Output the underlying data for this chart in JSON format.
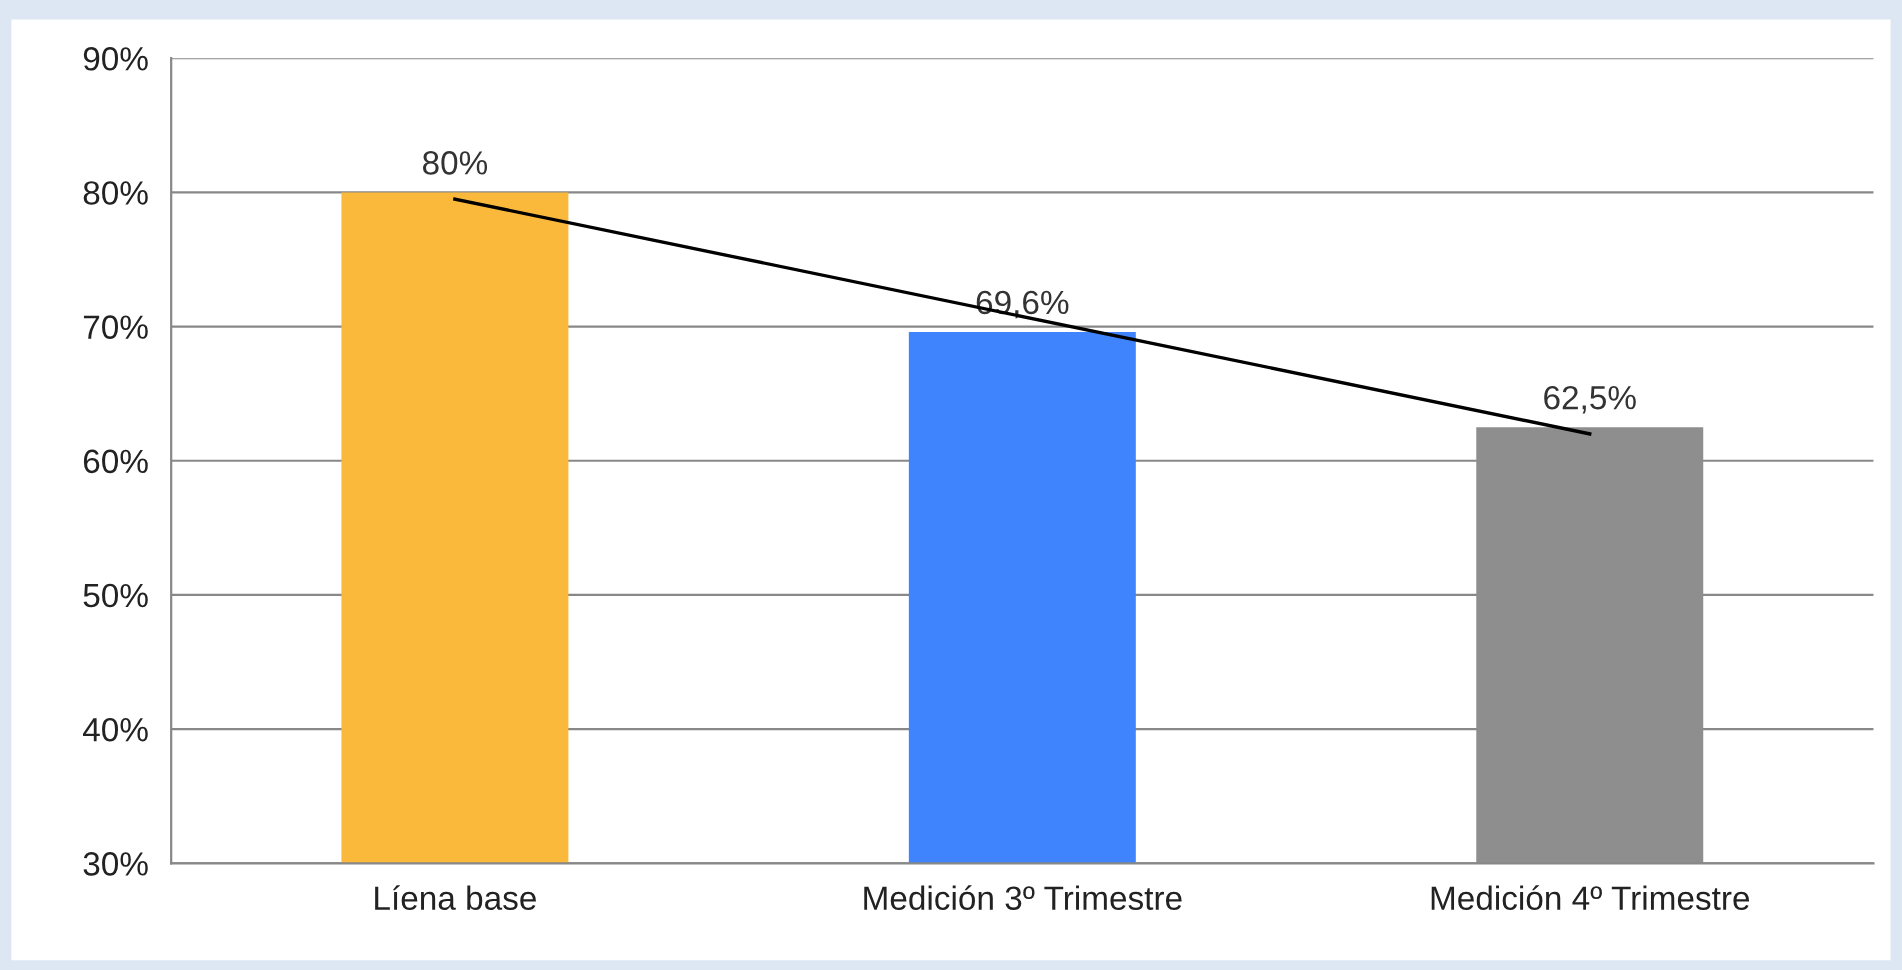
{
  "chart_data": {
    "type": "bar",
    "categories": [
      "Líena base",
      "Medición 3º Trimestre",
      "Medición 4º Trimestre"
    ],
    "series": [
      {
        "values": [
          80,
          69.6,
          62.5
        ],
        "colors": [
          "#fbb93b",
          "#3f83fd",
          "#8e8e8e"
        ],
        "value_labels": [
          "80%",
          "69,6%",
          "62,5%"
        ]
      },
      {
        "type": "line",
        "x": [
          "Líena base",
          "Medición 4º Trimestre"
        ],
        "values": [
          79.5,
          62
        ],
        "color": "#000000"
      }
    ],
    "ylim": [
      30,
      90
    ],
    "yticks": [
      {
        "value": 30,
        "label": "30%"
      },
      {
        "value": 40,
        "label": "40%"
      },
      {
        "value": 50,
        "label": "50%"
      },
      {
        "value": 60,
        "label": "60%"
      },
      {
        "value": 70,
        "label": "70%"
      },
      {
        "value": 80,
        "label": "80%"
      },
      {
        "value": 90,
        "label": "90%"
      }
    ],
    "grid": "y",
    "legend": false
  }
}
